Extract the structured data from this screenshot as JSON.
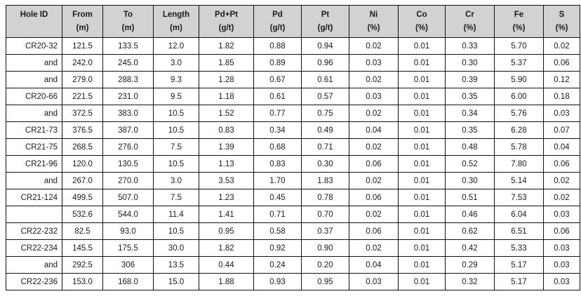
{
  "table": {
    "name": "drill-assay-results",
    "columns": [
      {
        "label": "Hole ID",
        "unit": ""
      },
      {
        "label": "From",
        "unit": "(m)"
      },
      {
        "label": "To",
        "unit": "(m)"
      },
      {
        "label": "Length",
        "unit": "(m)"
      },
      {
        "label": "Pd+Pt",
        "unit": "(g/t)"
      },
      {
        "label": "Pd",
        "unit": "(g/t)"
      },
      {
        "label": "Pt",
        "unit": "(g/t)"
      },
      {
        "label": "Ni",
        "unit": "(%)"
      },
      {
        "label": "Co",
        "unit": "(%)"
      },
      {
        "label": "Cr",
        "unit": "(%)"
      },
      {
        "label": "Fe",
        "unit": "(%)"
      },
      {
        "label": "S",
        "unit": "(%)"
      }
    ],
    "rows": [
      [
        "CR20-32",
        "121.5",
        "133.5",
        "12.0",
        "1.82",
        "0.88",
        "0.94",
        "0.02",
        "0.01",
        "0.33",
        "5.70",
        "0.02"
      ],
      [
        "and",
        "242.0",
        "245.0",
        "3.0",
        "1.85",
        "0.89",
        "0.96",
        "0.03",
        "0.01",
        "0.30",
        "5.37",
        "0.06"
      ],
      [
        "and",
        "279.0",
        "288.3",
        "9.3",
        "1.28",
        "0.67",
        "0.61",
        "0.02",
        "0.01",
        "0.39",
        "5.90",
        "0.12"
      ],
      [
        "CR20-66",
        "221.5",
        "231.0",
        "9.5",
        "1.18",
        "0.61",
        "0.57",
        "0.03",
        "0.01",
        "0.35",
        "6.00",
        "0.18"
      ],
      [
        "and",
        "372.5",
        "383.0",
        "10.5",
        "1.52",
        "0.77",
        "0.75",
        "0.02",
        "0.01",
        "0.34",
        "5.76",
        "0.03"
      ],
      [
        "CR21-73",
        "376.5",
        "387.0",
        "10.5",
        "0.83",
        "0.34",
        "0.49",
        "0.04",
        "0.01",
        "0.35",
        "6.28",
        "0.07"
      ],
      [
        "CR21-75",
        "268.5",
        "276.0",
        "7.5",
        "1.39",
        "0.68",
        "0.71",
        "0.02",
        "0.01",
        "0.48",
        "5.78",
        "0.04"
      ],
      [
        "CR21-96",
        "120.0",
        "130.5",
        "10.5",
        "1.13",
        "0.83",
        "0.30",
        "0.06",
        "0.01",
        "0.52",
        "7.80",
        "0.06"
      ],
      [
        "and",
        "267.0",
        "270.0",
        "3.0",
        "3.53",
        "1.70",
        "1.83",
        "0.02",
        "0.01",
        "0.30",
        "5.14",
        "0.02"
      ],
      [
        "CR21-124",
        "499.5",
        "507.0",
        "7.5",
        "1.23",
        "0.45",
        "0.78",
        "0.06",
        "0.01",
        "0.51",
        "7.53",
        "0.02"
      ],
      [
        "",
        "532.6",
        "544.0",
        "11.4",
        "1.41",
        "0.71",
        "0.70",
        "0.02",
        "0.01",
        "0.46",
        "6.04",
        "0.03"
      ],
      [
        "CR22-232",
        "82.5",
        "93.0",
        "10.5",
        "0.95",
        "0.58",
        "0.37",
        "0.06",
        "0.01",
        "0.62",
        "6.51",
        "0.06"
      ],
      [
        "CR22-234",
        "145.5",
        "175.5",
        "30.0",
        "1.82",
        "0.92",
        "0.90",
        "0.02",
        "0.01",
        "0.42",
        "5.33",
        "0.03"
      ],
      [
        "and",
        "292.5",
        "306",
        "13.5",
        "0.44",
        "0.24",
        "0.20",
        "0.04",
        "0.01",
        "0.29",
        "5.17",
        "0.03"
      ],
      [
        "CR22-236",
        "153.0",
        "168.0",
        "15.0",
        "1.88",
        "0.93",
        "0.95",
        "0.03",
        "0.01",
        "0.32",
        "5.17",
        "0.03"
      ]
    ]
  }
}
